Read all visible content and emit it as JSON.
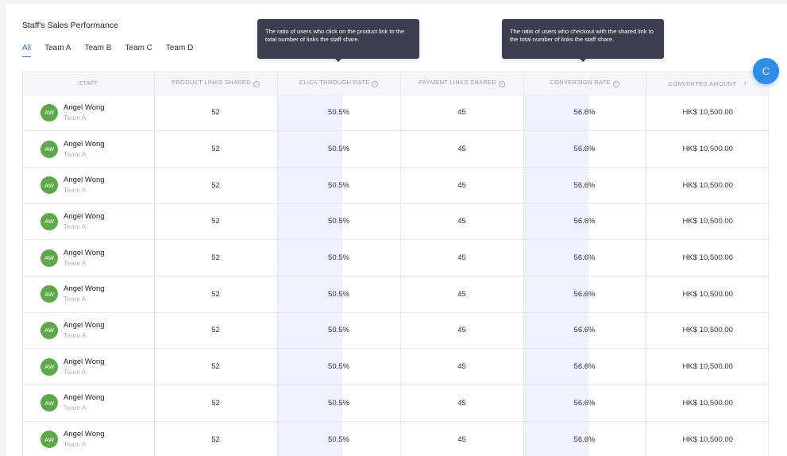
{
  "card": {
    "title": "Staff's Sales Performance"
  },
  "tabs": [
    {
      "label": "All",
      "active": true
    },
    {
      "label": "Team A",
      "active": false
    },
    {
      "label": "Team B",
      "active": false
    },
    {
      "label": "Team C",
      "active": false
    },
    {
      "label": "Team D",
      "active": false
    }
  ],
  "table": {
    "columns": [
      {
        "label": "STAFF",
        "info": false
      },
      {
        "label": "PRODUCT LINKS SHARED",
        "info": true
      },
      {
        "label": "CLICK THROUGH RATE",
        "info": true
      },
      {
        "label": "PAYMENT LINKS SHARED",
        "info": true
      },
      {
        "label": "CONVERSION RATE",
        "info": true
      },
      {
        "label": "CONVERTED AMOUNT",
        "info": false,
        "sort": "ascending"
      }
    ],
    "rows": [
      {
        "initials": "AW",
        "name": "Angel Wong",
        "team": "Team A",
        "product_links": "52",
        "ctr": "50.5%",
        "payment_links": "45",
        "conversion": "56.6%",
        "amount": "HK$ 10,500.00"
      },
      {
        "initials": "AW",
        "name": "Angel Wong",
        "team": "Team A",
        "product_links": "52",
        "ctr": "50.5%",
        "payment_links": "45",
        "conversion": "56.6%",
        "amount": "HK$ 10,500.00"
      },
      {
        "initials": "AW",
        "name": "Angel Wong",
        "team": "Team A",
        "product_links": "52",
        "ctr": "50.5%",
        "payment_links": "45",
        "conversion": "56.6%",
        "amount": "HK$ 10,500.00"
      },
      {
        "initials": "AW",
        "name": "Angel Wong",
        "team": "Team A",
        "product_links": "52",
        "ctr": "50.5%",
        "payment_links": "45",
        "conversion": "56.6%",
        "amount": "HK$ 10,500.00"
      },
      {
        "initials": "AW",
        "name": "Angel Wong",
        "team": "Team A",
        "product_links": "52",
        "ctr": "50.5%",
        "payment_links": "45",
        "conversion": "56.6%",
        "amount": "HK$ 10,500.00"
      },
      {
        "initials": "AW",
        "name": "Angel Wong",
        "team": "Team A",
        "product_links": "52",
        "ctr": "50.5%",
        "payment_links": "45",
        "conversion": "56.6%",
        "amount": "HK$ 10,500.00"
      },
      {
        "initials": "AW",
        "name": "Angel Wong",
        "team": "Team A",
        "product_links": "52",
        "ctr": "50.5%",
        "payment_links": "45",
        "conversion": "56.6%",
        "amount": "HK$ 10,500.00"
      },
      {
        "initials": "AW",
        "name": "Angel Wong",
        "team": "Team A",
        "product_links": "52",
        "ctr": "50.5%",
        "payment_links": "45",
        "conversion": "56.6%",
        "amount": "HK$ 10,500.00"
      },
      {
        "initials": "AW",
        "name": "Angel Wong",
        "team": "Team A",
        "product_links": "52",
        "ctr": "50.5%",
        "payment_links": "45",
        "conversion": "56.6%",
        "amount": "HK$ 10,500.00"
      },
      {
        "initials": "AW",
        "name": "Angel Wong",
        "team": "Team A",
        "product_links": "52",
        "ctr": "50.5%",
        "payment_links": "45",
        "conversion": "56.6%",
        "amount": "HK$ 10,500.00"
      }
    ]
  },
  "tooltips": {
    "click_through": "The ratio of users who click on the product link to the total number of links the staff share.",
    "conversion": "The ratio of users who checkout with the shared link to the total number of links the staff share."
  },
  "icons": {
    "info": "info-circle-icon",
    "sort": "sort-arrow-up-icon"
  },
  "fab": {
    "label": "C",
    "color": "#2e8be6"
  },
  "colors": {
    "accent": "#3b6fd8",
    "avatar": "#5fa84a",
    "highlight": "#eef2fe",
    "tooltip_bg": "#3a3e4f"
  }
}
